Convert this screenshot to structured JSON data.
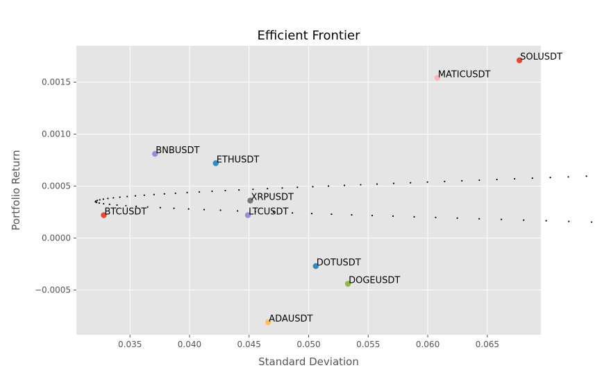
{
  "chart_data": {
    "type": "scatter",
    "title": "Efficient Frontier",
    "xlabel": "Standard Deviation",
    "ylabel": "Portfolio Return",
    "xlim": [
      0.0305,
      0.0695
    ],
    "ylim": [
      -0.00093,
      0.00185
    ],
    "grid": true,
    "background": "#e5e5e5",
    "x_ticks": [
      0.035,
      0.04,
      0.045,
      0.05,
      0.055,
      0.06,
      0.065
    ],
    "x_tick_labels": [
      "0.035",
      "0.040",
      "0.045",
      "0.050",
      "0.055",
      "0.060",
      "0.065"
    ],
    "y_ticks": [
      -0.0005,
      0.0,
      0.0005,
      0.001,
      0.0015
    ],
    "y_tick_labels": [
      "−0.0005",
      "0.0000",
      "0.0005",
      "0.0010",
      "0.0015"
    ],
    "frontier": {
      "color": "#000000",
      "min_variance_point": [
        0.0321,
        0.00035
      ],
      "low_end": [
        0.0465,
        -0.00081
      ],
      "high_end": [
        0.0677,
        0.00171
      ],
      "high_curvature": 1.38e-05,
      "low_curvature": 8.72e-06
    },
    "assets": [
      {
        "name": "SOLUSDT",
        "x": 0.0677,
        "y": 0.00171,
        "color": "#e24a33"
      },
      {
        "name": "MATICUSDT",
        "x": 0.0608,
        "y": 0.00154,
        "color": "#ffb5b8"
      },
      {
        "name": "BNBUSDT",
        "x": 0.0371,
        "y": 0.00081,
        "color": "#988ed5"
      },
      {
        "name": "ETHUSDT",
        "x": 0.0422,
        "y": 0.00072,
        "color": "#348abd"
      },
      {
        "name": "XRPUSDT",
        "x": 0.0451,
        "y": 0.00036,
        "color": "#777777"
      },
      {
        "name": "LTCUSDT",
        "x": 0.0449,
        "y": 0.00022,
        "color": "#988ed5"
      },
      {
        "name": "BTCUSDT",
        "x": 0.0328,
        "y": 0.00022,
        "color": "#e24a33"
      },
      {
        "name": "DOTUSDT",
        "x": 0.0506,
        "y": -0.00027,
        "color": "#348abd"
      },
      {
        "name": "DOGEUSDT",
        "x": 0.0533,
        "y": -0.00044,
        "color": "#8eba42"
      },
      {
        "name": "ADAUSDT",
        "x": 0.0466,
        "y": -0.00081,
        "color": "#fbc15e"
      }
    ]
  }
}
